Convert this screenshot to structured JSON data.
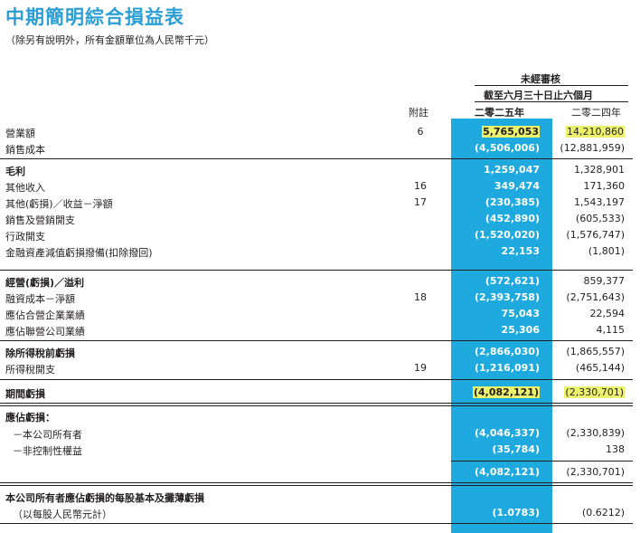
{
  "title": "中期簡明綜合損益表",
  "subtitle": "（除另有說明外，所有金額單位為人民幣千元）",
  "header": {
    "unaudited": "未經審核",
    "period": "截至六月三十日止六個月",
    "note_col": "附註",
    "year_2025": "二零二五年",
    "year_2024": "二零二四年"
  },
  "rows": [
    {
      "label": "營業額",
      "note": "6",
      "v2025": "5,765,053",
      "v2024": "14,210,860"
    },
    {
      "label": "銷售成本",
      "note": "",
      "v2025": "(4,506,006)",
      "v2024": "(12,881,959)"
    },
    {
      "label": "毛利",
      "note": "",
      "v2025": "1,259,047",
      "v2024": "1,328,901"
    },
    {
      "label": "其他收入",
      "note": "16",
      "v2025": "349,474",
      "v2024": "171,360"
    },
    {
      "label": "其他(虧損)／收益－淨額",
      "note": "17",
      "v2025": "(230,385)",
      "v2024": "1,543,197"
    },
    {
      "label": "銷售及營銷開支",
      "note": "",
      "v2025": "(452,890)",
      "v2024": "(605,533)"
    },
    {
      "label": "行政開支",
      "note": "",
      "v2025": "(1,520,020)",
      "v2024": "(1,576,747)"
    },
    {
      "label": "金融資產減值虧損撥備(扣除撥回)",
      "note": "",
      "v2025": "22,153",
      "v2024": "(1,801)"
    },
    {
      "label": "經營(虧損)／溢利",
      "note": "",
      "v2025": "(572,621)",
      "v2024": "859,377"
    },
    {
      "label": "融資成本－淨額",
      "note": "18",
      "v2025": "(2,393,758)",
      "v2024": "(2,751,643)"
    },
    {
      "label": "應佔合營企業業績",
      "note": "",
      "v2025": "75,043",
      "v2024": "22,594"
    },
    {
      "label": "應佔聯營公司業績",
      "note": "",
      "v2025": "25,306",
      "v2024": "4,115"
    },
    {
      "label": "除所得稅前虧損",
      "note": "",
      "v2025": "(2,866,030)",
      "v2024": "(1,865,557)"
    },
    {
      "label": "所得稅開支",
      "note": "19",
      "v2025": "(1,216,091)",
      "v2024": "(465,144)"
    },
    {
      "label": "期間虧損",
      "note": "",
      "v2025": "(4,082,121)",
      "v2024": "(2,330,701)"
    },
    {
      "label": "應佔虧損：",
      "note": "",
      "v2025": "",
      "v2024": ""
    },
    {
      "label": "－本公司所有者",
      "note": "",
      "v2025": "(4,046,337)",
      "v2024": "(2,330,839)"
    },
    {
      "label": "－非控制性權益",
      "note": "",
      "v2025": "(35,784)",
      "v2024": "138"
    },
    {
      "label": "",
      "note": "",
      "v2025": "(4,082,121)",
      "v2024": "(2,330,701)"
    },
    {
      "label": "本公司所有者應佔虧損的每股基本及攤薄虧損",
      "note": "",
      "v2025": "",
      "v2024": ""
    },
    {
      "label": "（以每股人民幣元計）",
      "note": "",
      "v2025": "(1.0783)",
      "v2024": "(0.6212)"
    }
  ],
  "colors": {
    "title": "#2a9fd6",
    "column_highlight": "#1eaade",
    "marker_highlight": "#ecf26b"
  }
}
